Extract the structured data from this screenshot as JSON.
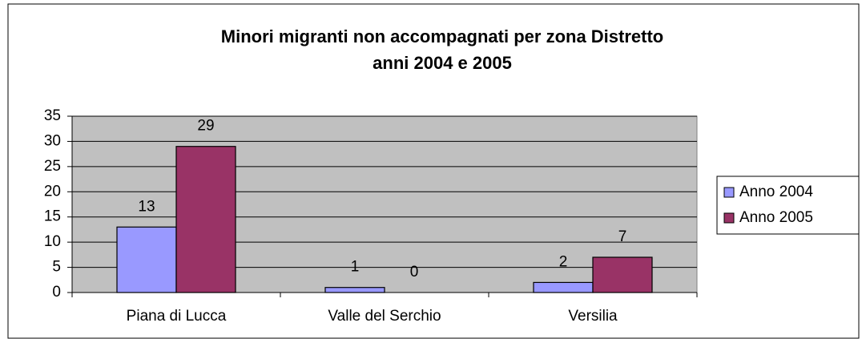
{
  "chart_data": {
    "type": "bar",
    "title": [
      "Minori migranti non accompagnati per zona Distretto",
      "anni 2004 e 2005"
    ],
    "categories": [
      "Piana di Lucca",
      "Valle del Serchio",
      "Versilia"
    ],
    "series": [
      {
        "name": "Anno 2004",
        "color": "#9999ff",
        "values": [
          13,
          1,
          2
        ]
      },
      {
        "name": "Anno 2005",
        "color": "#993366",
        "values": [
          29,
          0,
          7
        ]
      }
    ],
    "ylim": [
      0,
      35
    ],
    "yticks": [
      0,
      5,
      10,
      15,
      20,
      25,
      30,
      35
    ],
    "grid": true,
    "legend": "right",
    "plot_background": "#c0c0c0"
  }
}
